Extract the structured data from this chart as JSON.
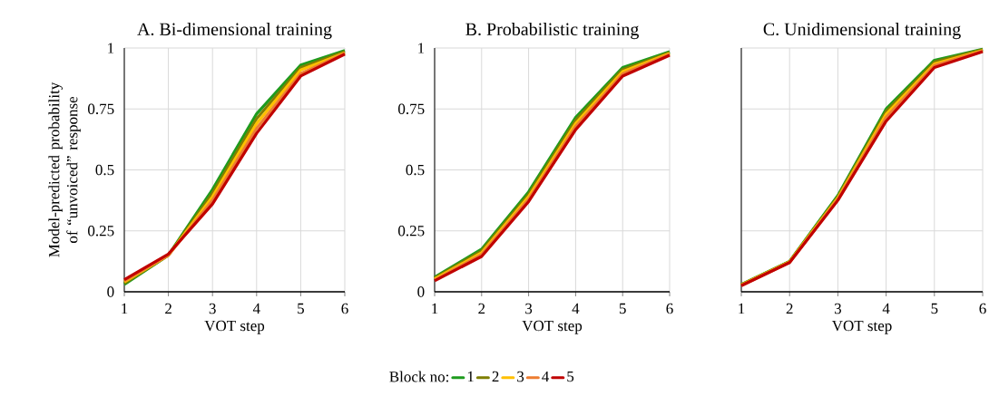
{
  "chart_data": [
    {
      "type": "line",
      "title": "A. Bi-dimensional training",
      "xlabel": "VOT step",
      "ylabel": "Model-predicted probability of “unvoiced” response",
      "x": [
        1,
        2,
        3,
        4,
        5,
        6
      ],
      "xlim": [
        1,
        6
      ],
      "xticks": [
        1,
        2,
        3,
        4,
        5,
        6
      ],
      "ylim": [
        0,
        1
      ],
      "yticks": [
        0,
        0.25,
        0.5,
        0.75,
        1
      ],
      "grid": true,
      "marker": "none",
      "line_style": "solid",
      "series": [
        {
          "color": "#1e9b1e",
          "values": [
            0.03,
            0.15,
            0.42,
            0.73,
            0.93,
            0.99
          ]
        },
        {
          "color": "#7f7f00",
          "values": [
            0.035,
            0.15,
            0.405,
            0.71,
            0.92,
            0.985
          ]
        },
        {
          "color": "#ffc000",
          "values": [
            0.04,
            0.15,
            0.39,
            0.69,
            0.91,
            0.98
          ]
        },
        {
          "color": "#ed7d31",
          "values": [
            0.045,
            0.15,
            0.375,
            0.67,
            0.895,
            0.978
          ]
        },
        {
          "color": "#c00000",
          "values": [
            0.05,
            0.155,
            0.36,
            0.65,
            0.885,
            0.975
          ]
        }
      ]
    },
    {
      "type": "line",
      "title": "B. Probabilistic training",
      "xlabel": "VOT step",
      "x": [
        1,
        2,
        3,
        4,
        5,
        6
      ],
      "xlim": [
        1,
        6
      ],
      "xticks": [
        1,
        2,
        3,
        4,
        5,
        6
      ],
      "ylim": [
        0,
        1
      ],
      "yticks": [
        0,
        0.25,
        0.5,
        0.75,
        1
      ],
      "grid": true,
      "marker": "none",
      "line_style": "solid",
      "legend": "bottom",
      "legend_title": "Block no:",
      "series": [
        {
          "name": "1",
          "color": "#1e9b1e",
          "values": [
            0.06,
            0.175,
            0.41,
            0.715,
            0.92,
            0.985
          ]
        },
        {
          "name": "2",
          "color": "#7f7f00",
          "values": [
            0.056,
            0.168,
            0.4,
            0.703,
            0.912,
            0.981
          ]
        },
        {
          "name": "3",
          "color": "#ffc000",
          "values": [
            0.052,
            0.16,
            0.39,
            0.69,
            0.903,
            0.978
          ]
        },
        {
          "name": "4",
          "color": "#ed7d31",
          "values": [
            0.048,
            0.153,
            0.38,
            0.678,
            0.894,
            0.974
          ]
        },
        {
          "name": "5",
          "color": "#c00000",
          "values": [
            0.045,
            0.145,
            0.37,
            0.665,
            0.885,
            0.97
          ]
        }
      ]
    },
    {
      "type": "line",
      "title": "C. Unidimensional training",
      "xlabel": "VOT step",
      "x": [
        1,
        2,
        3,
        4,
        5,
        6
      ],
      "xlim": [
        1,
        6
      ],
      "xticks": [
        1,
        2,
        3,
        4,
        5,
        6
      ],
      "ylim": [
        0,
        1
      ],
      "yticks": [
        0,
        0.25,
        0.5,
        0.75,
        1
      ],
      "grid": true,
      "marker": "none",
      "line_style": "solid",
      "tick_labels": "x",
      "series": [
        {
          "color": "#1e9b1e",
          "values": [
            0.03,
            0.125,
            0.395,
            0.75,
            0.95,
            0.995
          ]
        },
        {
          "color": "#7f7f00",
          "values": [
            0.029,
            0.124,
            0.39,
            0.74,
            0.943,
            0.993
          ]
        },
        {
          "color": "#ffc000",
          "values": [
            0.028,
            0.123,
            0.385,
            0.728,
            0.935,
            0.99
          ]
        },
        {
          "color": "#ed7d31",
          "values": [
            0.026,
            0.121,
            0.38,
            0.715,
            0.928,
            0.988
          ]
        },
        {
          "color": "#c00000",
          "values": [
            0.025,
            0.12,
            0.375,
            0.7,
            0.92,
            0.985
          ]
        }
      ]
    }
  ]
}
